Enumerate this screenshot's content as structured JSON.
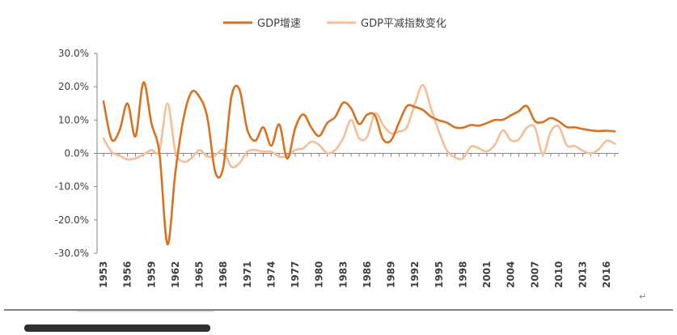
{
  "chart_data": {
    "type": "line",
    "series": [
      {
        "name": "GDP增速",
        "color": "#D9711F",
        "values": [
          15.6,
          4.2,
          6.9,
          15.0,
          5.1,
          21.3,
          9.0,
          0.0,
          -27.3,
          -5.6,
          10.3,
          18.3,
          17.0,
          10.7,
          -5.7,
          -4.1,
          16.9,
          19.3,
          7.1,
          3.8,
          7.8,
          2.3,
          8.7,
          -1.6,
          7.6,
          11.7,
          7.8,
          5.2,
          9.1,
          10.9,
          15.2,
          13.5,
          8.8,
          11.6,
          11.3,
          4.2,
          3.9,
          9.3,
          14.2,
          13.9,
          13.0,
          11.0,
          9.9,
          9.2,
          7.8,
          7.7,
          8.5,
          8.3,
          9.1,
          10.0,
          10.1,
          11.4,
          12.7,
          14.2,
          9.7,
          9.4,
          10.6,
          9.6,
          7.9,
          7.8,
          7.3,
          6.9,
          6.7,
          6.8,
          6.6
        ]
      },
      {
        "name": "GDP平减指数变化",
        "color": "#F5BE96",
        "values": [
          4.5,
          0.5,
          -0.7,
          -1.8,
          -1.5,
          -0.3,
          1.0,
          0.8,
          15.0,
          0.5,
          -2.5,
          -1.5,
          1.0,
          -1.0,
          -0.5,
          1.0,
          -4.0,
          -3.0,
          0.5,
          1.0,
          0.5,
          0.5,
          -1.0,
          -0.8,
          1.0,
          1.5,
          3.5,
          2.5,
          0.0,
          1.0,
          4.5,
          10.0,
          4.5,
          5.0,
          12.0,
          8.5,
          6.0,
          6.5,
          8.0,
          15.0,
          20.5,
          13.5,
          6.5,
          0.8,
          -1.2,
          -1.5,
          2.0,
          1.5,
          0.6,
          2.6,
          6.9,
          3.9,
          4.2,
          7.7,
          7.8,
          -0.2,
          6.6,
          8.1,
          2.4,
          2.2,
          0.8,
          0.0,
          1.2,
          3.8,
          2.9
        ]
      }
    ],
    "x": [
      1953,
      1954,
      1955,
      1956,
      1957,
      1958,
      1959,
      1960,
      1961,
      1962,
      1963,
      1964,
      1965,
      1966,
      1967,
      1968,
      1969,
      1970,
      1971,
      1972,
      1973,
      1974,
      1975,
      1976,
      1977,
      1978,
      1979,
      1980,
      1981,
      1982,
      1983,
      1984,
      1985,
      1986,
      1987,
      1988,
      1989,
      1990,
      1991,
      1992,
      1993,
      1994,
      1995,
      1996,
      1997,
      1998,
      1999,
      2000,
      2001,
      2002,
      2003,
      2004,
      2005,
      2006,
      2007,
      2008,
      2009,
      2010,
      2011,
      2012,
      2013,
      2014,
      2015,
      2016,
      2017
    ],
    "x_tick_labels": [
      "1953",
      "1956",
      "1959",
      "1962",
      "1965",
      "1968",
      "1971",
      "1974",
      "1977",
      "1980",
      "1983",
      "1986",
      "1989",
      "1992",
      "1995",
      "1998",
      "2001",
      "2004",
      "2007",
      "2010",
      "2013",
      "2016"
    ],
    "y_tick_labels": [
      "30.0%",
      "20.0%",
      "10.0%",
      "0.0%",
      "-10.0%",
      "-20.0%",
      "-30.0%"
    ],
    "y_ticks": [
      30,
      20,
      10,
      0,
      -10,
      -20,
      -30
    ],
    "ylim": [
      -30,
      30
    ],
    "title": "",
    "xlabel": "",
    "ylabel": "",
    "legend_position": "top-center",
    "grid": false
  },
  "return_mark": "↵"
}
